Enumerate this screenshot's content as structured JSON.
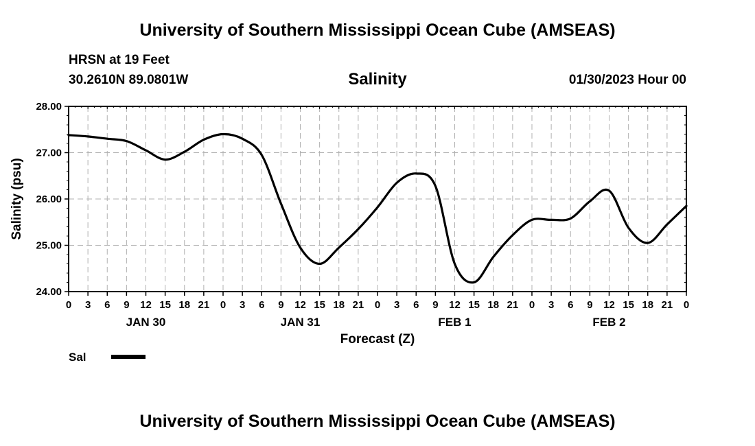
{
  "header": {
    "title": "University of Southern Mississippi Ocean Cube (AMSEAS)",
    "station": "HRSN at 19 Feet",
    "location": "30.2610N  89.0801W",
    "datetime": "01/30/2023 Hour 00"
  },
  "footer": {
    "title": "University of Southern Mississippi Ocean Cube (AMSEAS)"
  },
  "chart_data": {
    "type": "line",
    "title": "Salinity",
    "xlabel": "Forecast (Z)",
    "ylabel": "Salinity (psu)",
    "ylim": [
      24.0,
      28.0
    ],
    "xlim_hours": [
      0,
      96
    ],
    "grid": true,
    "y_ticks": [
      "24.00",
      "25.00",
      "26.00",
      "27.00",
      "28.00"
    ],
    "x_tick_labels": [
      "0",
      "3",
      "6",
      "9",
      "12",
      "15",
      "18",
      "21",
      "0",
      "3",
      "6",
      "9",
      "12",
      "15",
      "18",
      "21",
      "0",
      "3",
      "6",
      "9",
      "12",
      "15",
      "18",
      "21",
      "0",
      "3",
      "6",
      "9",
      "12",
      "15",
      "18",
      "21",
      "0"
    ],
    "day_labels": [
      {
        "label": "JAN 30",
        "hour": 12
      },
      {
        "label": "JAN 31",
        "hour": 36
      },
      {
        "label": "FEB 1",
        "hour": 60
      },
      {
        "label": "FEB 2",
        "hour": 84
      }
    ],
    "legend": {
      "position": "bottom-left",
      "entries": [
        "Sal"
      ]
    },
    "series": [
      {
        "name": "Sal",
        "x_hours": [
          0,
          3,
          6,
          9,
          12,
          15,
          18,
          21,
          24,
          27,
          30,
          33,
          36,
          39,
          42,
          45,
          48,
          51,
          54,
          57,
          60,
          63,
          66,
          69,
          72,
          75,
          78,
          81,
          84,
          87,
          90,
          93,
          96
        ],
        "values": [
          27.38,
          27.35,
          27.3,
          27.25,
          27.05,
          26.85,
          27.02,
          27.28,
          27.4,
          27.3,
          26.95,
          25.9,
          24.95,
          24.6,
          24.95,
          25.35,
          25.82,
          26.35,
          26.55,
          26.28,
          24.6,
          24.2,
          24.75,
          25.22,
          25.55,
          25.55,
          25.58,
          25.95,
          26.18,
          25.38,
          25.05,
          25.45,
          25.85
        ]
      }
    ]
  }
}
